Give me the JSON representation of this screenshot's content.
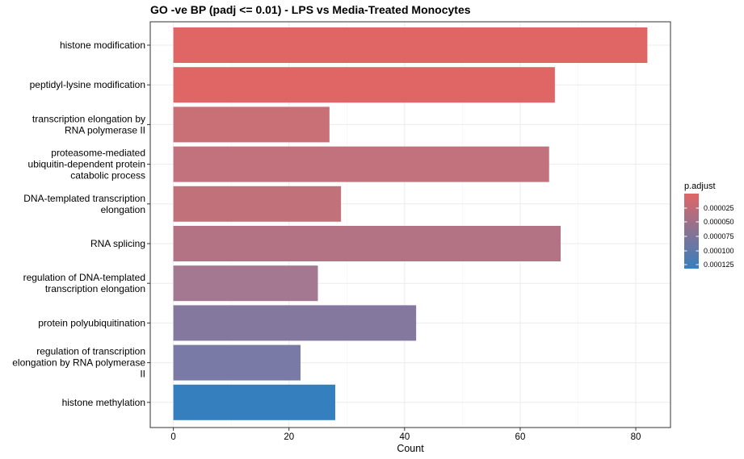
{
  "chart_data": {
    "type": "bar",
    "orientation": "horizontal",
    "title": "GO -ve BP (padj <= 0.01) - LPS vs Media-Treated Monocytes",
    "xlabel": "Count",
    "ylabel": "",
    "xlim": [
      -4,
      86
    ],
    "xticks": [
      0,
      20,
      40,
      60,
      80
    ],
    "grid": true,
    "categories": [
      [
        "histone modification"
      ],
      [
        "peptidyl-lysine modification"
      ],
      [
        "transcription elongation by",
        "RNA polymerase II"
      ],
      [
        "proteasome-mediated",
        "ubiquitin-dependent protein",
        "catabolic process"
      ],
      [
        "DNA-templated transcription",
        "elongation"
      ],
      [
        "RNA splicing"
      ],
      [
        "regulation of DNA-templated",
        "transcription elongation"
      ],
      [
        "protein polyubiquitination"
      ],
      [
        "regulation of transcription",
        "elongation by RNA polymerase",
        "II"
      ],
      [
        "histone methylation"
      ]
    ],
    "values": [
      82,
      66,
      27,
      65,
      29,
      67,
      25,
      42,
      22,
      28
    ],
    "bar_colors": [
      "#e06666",
      "#e06666",
      "#c96f76",
      "#c1727d",
      "#c17179",
      "#b47285",
      "#a47890",
      "#84789f",
      "#7a7aa7",
      "#357fbf"
    ],
    "legend": {
      "title": "p.adjust",
      "position": "right",
      "ticks": [
        "0.000025",
        "0.000050",
        "0.000075",
        "0.000100",
        "0.000125"
      ],
      "color_low": "#e06666",
      "color_high": "#357fbf"
    }
  }
}
